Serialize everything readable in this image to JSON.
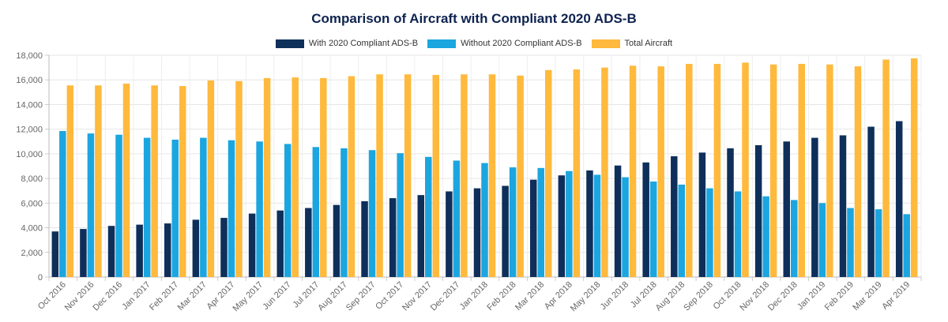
{
  "chart_data": {
    "type": "bar",
    "title": "Comparison of Aircraft with Compliant 2020 ADS-B",
    "xlabel": "",
    "ylabel": "",
    "ylim": [
      0,
      18000
    ],
    "yticks": [
      0,
      2000,
      4000,
      6000,
      8000,
      10000,
      12000,
      14000,
      16000,
      18000
    ],
    "ytick_labels": [
      "0",
      "2,000",
      "4,000",
      "6,000",
      "8,000",
      "10,000",
      "12,000",
      "14,000",
      "16,000",
      "18,000"
    ],
    "grid": true,
    "legend_position": "top",
    "categories": [
      "Oct 2016",
      "Nov 2016",
      "Dec 2016",
      "Jan 2017",
      "Feb 2017",
      "Mar 2017",
      "Apr 2017",
      "May 2017",
      "Jun 2017",
      "Jul 2017",
      "Aug 2017",
      "Sep 2017",
      "Oct 2017",
      "Nov 2017",
      "Dec 2017",
      "Jan 2018",
      "Feb 2018",
      "Mar 2018",
      "Apr 2018",
      "May 2018",
      "Jun 2018",
      "Jul 2018",
      "Aug 2018",
      "Sep 2018",
      "Oct 2018",
      "Nov 2018",
      "Dec 2018",
      "Jan 2019",
      "Feb 2019",
      "Mar 2019",
      "Apr 2019"
    ],
    "series": [
      {
        "name": "With 2020 Compliant ADS-B",
        "color": "#0e2f5a",
        "values": [
          3700,
          3900,
          4150,
          4250,
          4350,
          4650,
          4800,
          5150,
          5400,
          5600,
          5850,
          6150,
          6400,
          6650,
          6950,
          7200,
          7400,
          7900,
          8250,
          8650,
          9050,
          9300,
          9800,
          10100,
          10450,
          10700,
          11000,
          11300,
          11500,
          12200,
          12650
        ]
      },
      {
        "name": "Without 2020 Compliant ADS-B",
        "color": "#1ba6e0",
        "values": [
          11850,
          11650,
          11550,
          11300,
          11150,
          11300,
          11100,
          11000,
          10800,
          10550,
          10450,
          10300,
          10050,
          9750,
          9450,
          9250,
          8900,
          8850,
          8600,
          8300,
          8100,
          7750,
          7500,
          7200,
          6950,
          6550,
          6250,
          6000,
          5600,
          5500,
          5100
        ]
      },
      {
        "name": "Total Aircraft",
        "color": "#ffb93c",
        "values": [
          15550,
          15550,
          15700,
          15550,
          15500,
          15950,
          15900,
          16150,
          16200,
          16150,
          16300,
          16450,
          16450,
          16400,
          16450,
          16450,
          16350,
          16800,
          16850,
          17000,
          17150,
          17100,
          17300,
          17300,
          17400,
          17250,
          17300,
          17250,
          17100,
          17650,
          17750
        ]
      }
    ]
  }
}
